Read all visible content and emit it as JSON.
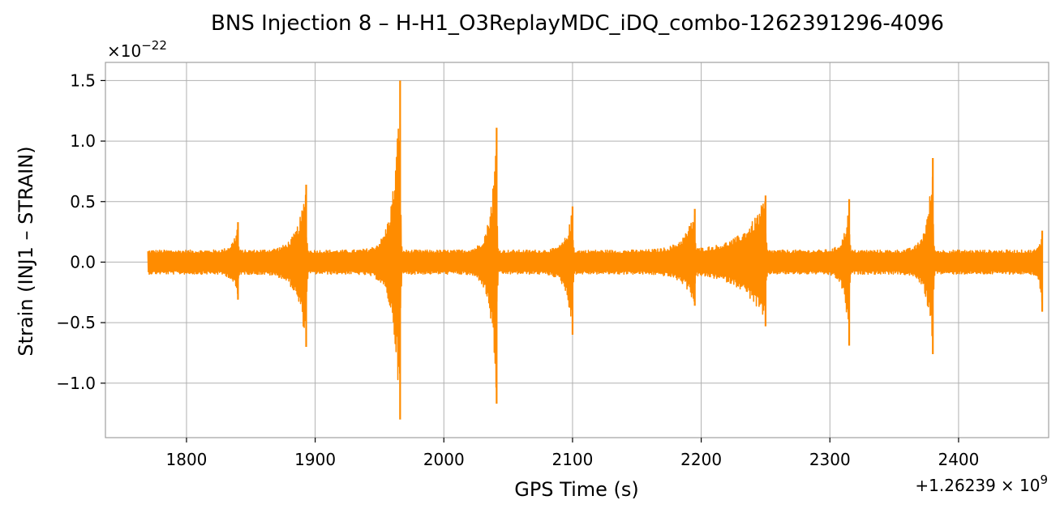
{
  "chart_data": {
    "type": "line",
    "title": "BNS Injection 8 – H-H1_O3ReplayMDC_iDQ_combo-1262391296-4096",
    "xlabel": "GPS Time (s)",
    "ylabel": "Strain (INJ1 – STRAIN)",
    "y_scale_label": "×10",
    "y_scale_exponent": "−22",
    "x_offset_label": "+1.26239",
    "x_offset_times": "× 10",
    "x_offset_exponent": "9",
    "xlim": [
      1737,
      2470
    ],
    "ylim": [
      -1.45,
      1.65
    ],
    "x_ticks": [
      1800,
      1900,
      2000,
      2100,
      2200,
      2300,
      2400
    ],
    "x_tick_labels": [
      "1800",
      "1900",
      "2000",
      "2100",
      "2200",
      "2300",
      "2400"
    ],
    "y_ticks": [
      -1.0,
      -0.5,
      0.0,
      0.5,
      1.0,
      1.5
    ],
    "y_tick_labels": [
      "−1.0",
      "−0.5",
      "0.0",
      "0.5",
      "1.0",
      "1.5"
    ],
    "grid": true,
    "series": [
      {
        "color": "#ff8c00",
        "x_start": 1770,
        "x_end": 2465,
        "baseline_noise_amplitude": 0.1,
        "events": [
          {
            "t": 1840,
            "max": 0.33,
            "min": -0.31,
            "rise": 8
          },
          {
            "t": 1893,
            "max": 0.64,
            "min": -0.7,
            "rise": 15
          },
          {
            "t": 1966,
            "max": 1.5,
            "min": -1.3,
            "rise": 12
          },
          {
            "t": 2041,
            "max": 1.11,
            "min": -1.17,
            "rise": 10
          },
          {
            "t": 2100,
            "max": 0.46,
            "min": -0.6,
            "rise": 10
          },
          {
            "t": 2195,
            "max": 0.44,
            "min": -0.36,
            "rise": 18
          },
          {
            "t": 2250,
            "max": 0.55,
            "min": -0.53,
            "rise": 35
          },
          {
            "t": 2315,
            "max": 0.52,
            "min": -0.69,
            "rise": 8
          },
          {
            "t": 2380,
            "max": 0.86,
            "min": -0.76,
            "rise": 10
          },
          {
            "t": 2465,
            "max": 0.26,
            "min": -0.41,
            "rise": 4
          }
        ]
      }
    ]
  }
}
